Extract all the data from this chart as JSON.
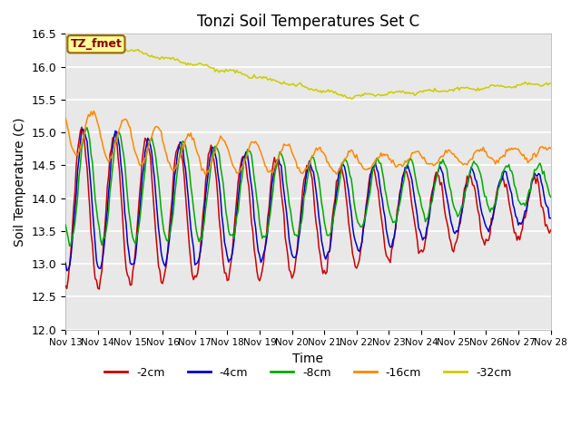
{
  "title": "Tonzi Soil Temperatures Set C",
  "xlabel": "Time",
  "ylabel": "Soil Temperature (C)",
  "ylim": [
    12.0,
    16.5
  ],
  "xlim": [
    0,
    360
  ],
  "series_labels": [
    "-2cm",
    "-4cm",
    "-8cm",
    "-16cm",
    "-32cm"
  ],
  "series_colors": [
    "#cc0000",
    "#0000cc",
    "#00aa00",
    "#ff8800",
    "#cccc00"
  ],
  "legend_label": "TZ_fmet",
  "legend_box_color": "#ffff99",
  "legend_box_edge": "#996600",
  "legend_text_color": "#880000",
  "plot_bg_color": "#e8e8e8",
  "num_points": 361,
  "tick_labels": [
    "Nov 13",
    "Nov 14",
    "Nov 15",
    "Nov 16",
    "Nov 17",
    "Nov 18",
    "Nov 19",
    "Nov 20",
    "Nov 21",
    "Nov 22",
    "Nov 23",
    "Nov 24",
    "Nov 25",
    "Nov 26",
    "Nov 27",
    "Nov 28"
  ],
  "tick_positions": [
    0,
    24,
    48,
    72,
    96,
    120,
    144,
    168,
    192,
    216,
    240,
    264,
    288,
    312,
    336,
    360
  ]
}
